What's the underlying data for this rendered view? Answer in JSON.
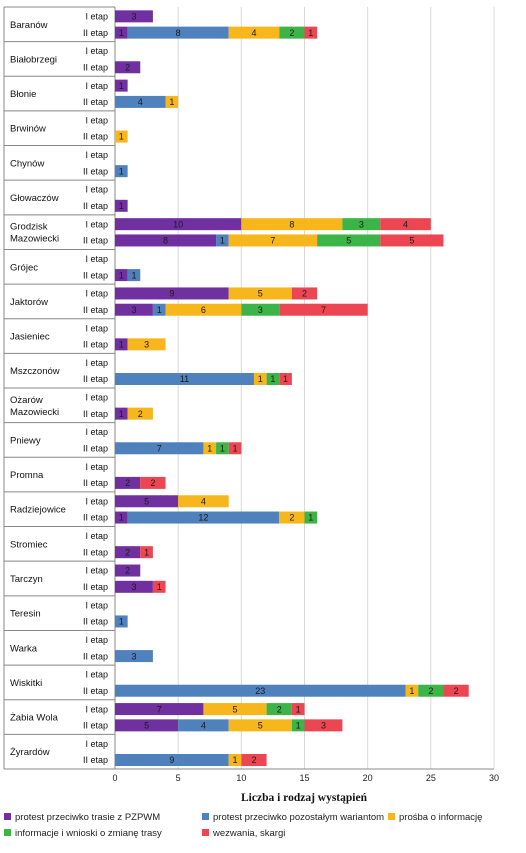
{
  "colors": {
    "purple": "#7030a0",
    "blue": "#4f81bd",
    "yellow": "#f6b61c",
    "green": "#3db447",
    "red": "#ed4653"
  },
  "chart_data": {
    "type": "bar",
    "orientation": "horizontal",
    "stacked": true,
    "xlabel": "Liczba i rodzaj wystąpień",
    "xlim": [
      0,
      30
    ],
    "xticks": [
      0,
      5,
      10,
      15,
      20,
      25,
      30
    ],
    "grid": true,
    "legend_position": "bottom",
    "series": [
      {
        "name": "protest przeciwko trasie z PZPWM",
        "color": "purple"
      },
      {
        "name": "protest przeciwko pozostałym wariantom",
        "color": "blue"
      },
      {
        "name": "prośba o informację",
        "color": "yellow"
      },
      {
        "name": "informacje i wnioski o zmianę trasy",
        "color": "green"
      },
      {
        "name": "wezwania, skargi",
        "color": "red"
      }
    ],
    "groups": [
      {
        "name": "Baranów",
        "bars": [
          {
            "label": "I etap",
            "values": [
              3,
              0,
              0,
              0,
              0
            ]
          },
          {
            "label": "II etap",
            "values": [
              1,
              8,
              4,
              2,
              1
            ]
          }
        ]
      },
      {
        "name": "Białobrzegi",
        "bars": [
          {
            "label": "I etap",
            "values": [
              0,
              0,
              0,
              0,
              0
            ]
          },
          {
            "label": "II etap",
            "values": [
              2,
              0,
              0,
              0,
              0
            ]
          }
        ]
      },
      {
        "name": "Błonie",
        "bars": [
          {
            "label": "I etap",
            "values": [
              1,
              0,
              0,
              0,
              0
            ]
          },
          {
            "label": "II etap",
            "values": [
              0,
              4,
              1,
              0,
              0
            ]
          }
        ]
      },
      {
        "name": "Brwinów",
        "bars": [
          {
            "label": "I etap",
            "values": [
              0,
              0,
              0,
              0,
              0
            ]
          },
          {
            "label": "II etap",
            "values": [
              0,
              0,
              1,
              0,
              0
            ]
          }
        ]
      },
      {
        "name": "Chynów",
        "bars": [
          {
            "label": "I etap",
            "values": [
              0,
              0,
              0,
              0,
              0
            ]
          },
          {
            "label": "II etap",
            "values": [
              0,
              1,
              0,
              0,
              0
            ]
          }
        ]
      },
      {
        "name": "Głowaczów",
        "bars": [
          {
            "label": "I etap",
            "values": [
              0,
              0,
              0,
              0,
              0
            ]
          },
          {
            "label": "II etap",
            "values": [
              1,
              0,
              0,
              0,
              0
            ]
          }
        ]
      },
      {
        "name": "Grodzisk Mazowiecki",
        "bars": [
          {
            "label": "I etap",
            "values": [
              10,
              0,
              8,
              3,
              4
            ]
          },
          {
            "label": "II etap",
            "values": [
              8,
              1,
              7,
              5,
              5
            ]
          }
        ]
      },
      {
        "name": "Grójec",
        "bars": [
          {
            "label": "I etap",
            "values": [
              0,
              0,
              0,
              0,
              0
            ]
          },
          {
            "label": "II etap",
            "values": [
              1,
              1,
              0,
              0,
              0
            ]
          }
        ]
      },
      {
        "name": "Jaktorów",
        "bars": [
          {
            "label": "I etap",
            "values": [
              9,
              0,
              5,
              0,
              2
            ]
          },
          {
            "label": "II etap",
            "values": [
              3,
              1,
              6,
              3,
              7
            ]
          }
        ]
      },
      {
        "name": "Jasieniec",
        "bars": [
          {
            "label": "I etap",
            "values": [
              0,
              0,
              0,
              0,
              0
            ]
          },
          {
            "label": "II etap",
            "values": [
              1,
              0,
              3,
              0,
              0
            ]
          }
        ]
      },
      {
        "name": "Mszczonów",
        "bars": [
          {
            "label": "I etap",
            "values": [
              0,
              0,
              0,
              0,
              0
            ]
          },
          {
            "label": "II etap",
            "values": [
              0,
              11,
              1,
              1,
              1
            ]
          }
        ]
      },
      {
        "name": "Ożarów Mazowiecki",
        "bars": [
          {
            "label": "I etap",
            "values": [
              0,
              0,
              0,
              0,
              0
            ]
          },
          {
            "label": "II etap",
            "values": [
              1,
              0,
              2,
              0,
              0
            ]
          }
        ]
      },
      {
        "name": "Pniewy",
        "bars": [
          {
            "label": "I etap",
            "values": [
              0,
              0,
              0,
              0,
              0
            ]
          },
          {
            "label": "II etap",
            "values": [
              0,
              7,
              1,
              1,
              1
            ]
          }
        ]
      },
      {
        "name": "Promna",
        "bars": [
          {
            "label": "I etap",
            "values": [
              0,
              0,
              0,
              0,
              0
            ]
          },
          {
            "label": "II etap",
            "values": [
              2,
              0,
              0,
              0,
              2
            ]
          }
        ]
      },
      {
        "name": "Radziejowice",
        "bars": [
          {
            "label": "I etap",
            "values": [
              5,
              0,
              4,
              0,
              0
            ]
          },
          {
            "label": "II etap",
            "values": [
              1,
              12,
              2,
              1,
              0
            ]
          }
        ]
      },
      {
        "name": "Stromiec",
        "bars": [
          {
            "label": "I etap",
            "values": [
              0,
              0,
              0,
              0,
              0
            ]
          },
          {
            "label": "II etap",
            "values": [
              2,
              0,
              0,
              0,
              1
            ]
          }
        ]
      },
      {
        "name": "Tarczyn",
        "bars": [
          {
            "label": "I etap",
            "values": [
              2,
              0,
              0,
              0,
              0
            ]
          },
          {
            "label": "II etap",
            "values": [
              3,
              0,
              0,
              0,
              1
            ]
          }
        ]
      },
      {
        "name": "Teresin",
        "bars": [
          {
            "label": "I etap",
            "values": [
              0,
              0,
              0,
              0,
              0
            ]
          },
          {
            "label": "II etap",
            "values": [
              0,
              1,
              0,
              0,
              0
            ]
          }
        ]
      },
      {
        "name": "Warka",
        "bars": [
          {
            "label": "I etap",
            "values": [
              0,
              0,
              0,
              0,
              0
            ]
          },
          {
            "label": "II etap",
            "values": [
              0,
              3,
              0,
              0,
              0
            ]
          }
        ]
      },
      {
        "name": "Wiskitki",
        "bars": [
          {
            "label": "I etap",
            "values": [
              0,
              0,
              0,
              0,
              0
            ]
          },
          {
            "label": "II etap",
            "values": [
              0,
              23,
              1,
              2,
              2
            ]
          }
        ]
      },
      {
        "name": "Żabia Wola",
        "bars": [
          {
            "label": "I etap",
            "values": [
              7,
              0,
              5,
              2,
              1
            ]
          },
          {
            "label": "II etap",
            "values": [
              5,
              4,
              5,
              1,
              3
            ]
          }
        ]
      },
      {
        "name": "Żyrardów",
        "bars": [
          {
            "label": "I etap",
            "values": [
              0,
              0,
              0,
              0,
              0
            ]
          },
          {
            "label": "II etap",
            "values": [
              0,
              9,
              1,
              0,
              2
            ]
          }
        ]
      }
    ]
  }
}
